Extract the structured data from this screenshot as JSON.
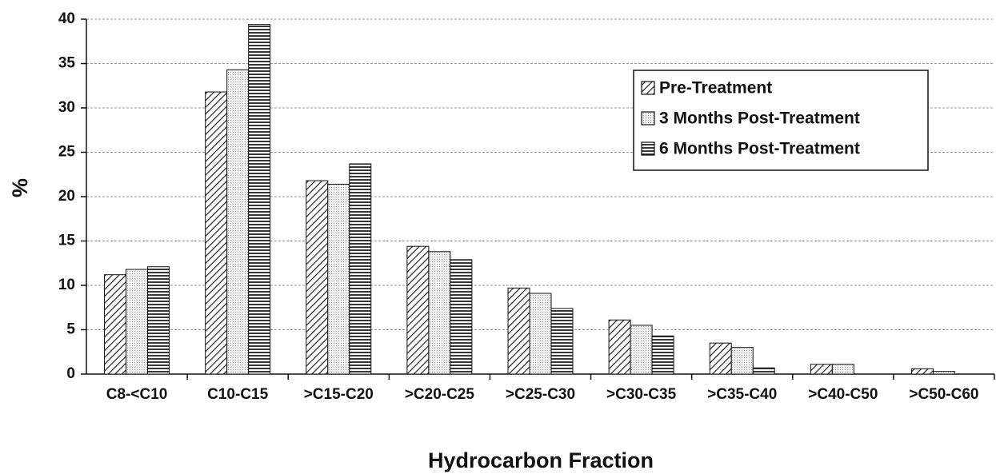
{
  "chart_data": {
    "type": "bar",
    "x_label": "Hydrocarbon Fraction",
    "y_label": "%",
    "categories": [
      "C8-<C10",
      "C10-C15",
      ">C15-C20",
      ">C20-C25",
      ">C25-C30",
      ">C30-C35",
      ">C35-C40",
      ">C40-C50",
      ">C50-C60"
    ],
    "series": [
      {
        "name": "Pre-Treatment",
        "color": "#ffffff",
        "pattern": "diagonal",
        "values": [
          11.2,
          31.8,
          21.8,
          14.4,
          9.7,
          6.1,
          3.5,
          1.1,
          0.6
        ]
      },
      {
        "name": "3 Months Post-Treatment",
        "color": "#ffffff",
        "pattern": "dotted",
        "values": [
          11.8,
          34.3,
          21.4,
          13.8,
          9.1,
          5.5,
          3.0,
          1.1,
          0.3
        ]
      },
      {
        "name": "6 Months Post-Treatment",
        "color": "#ffffff",
        "pattern": "horizontal",
        "values": [
          12.1,
          39.4,
          23.7,
          12.9,
          7.4,
          4.3,
          0.7,
          0,
          0
        ]
      }
    ],
    "ylim": [
      0,
      40
    ],
    "yticks": [
      0,
      5,
      10,
      15,
      20,
      25,
      30,
      35,
      40
    ],
    "grid": true,
    "legend": "upper right"
  }
}
